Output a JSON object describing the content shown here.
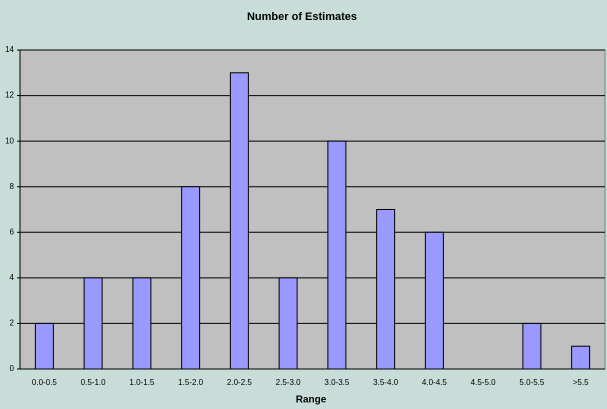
{
  "chart_data": {
    "type": "bar",
    "title": "Number of Estimates",
    "x_label": "Range",
    "categories": [
      "0.0-0.5",
      "0.5-1.0",
      "1.0-1.5",
      "1.5-2.0",
      "2.0-2.5",
      "2.5-3.0",
      "3.0-3.5",
      "3.5-4.0",
      "4.0-4.5",
      "4.5-5.0",
      "5.0-5.5",
      ">5.5"
    ],
    "values": [
      2,
      4,
      4,
      8,
      13,
      4,
      10,
      7,
      6,
      0,
      2,
      1
    ],
    "color": "#9999ff",
    "ylim": [
      0,
      14
    ],
    "yticks": [
      0,
      2,
      4,
      6,
      8,
      10,
      12,
      14
    ],
    "grid": true
  }
}
